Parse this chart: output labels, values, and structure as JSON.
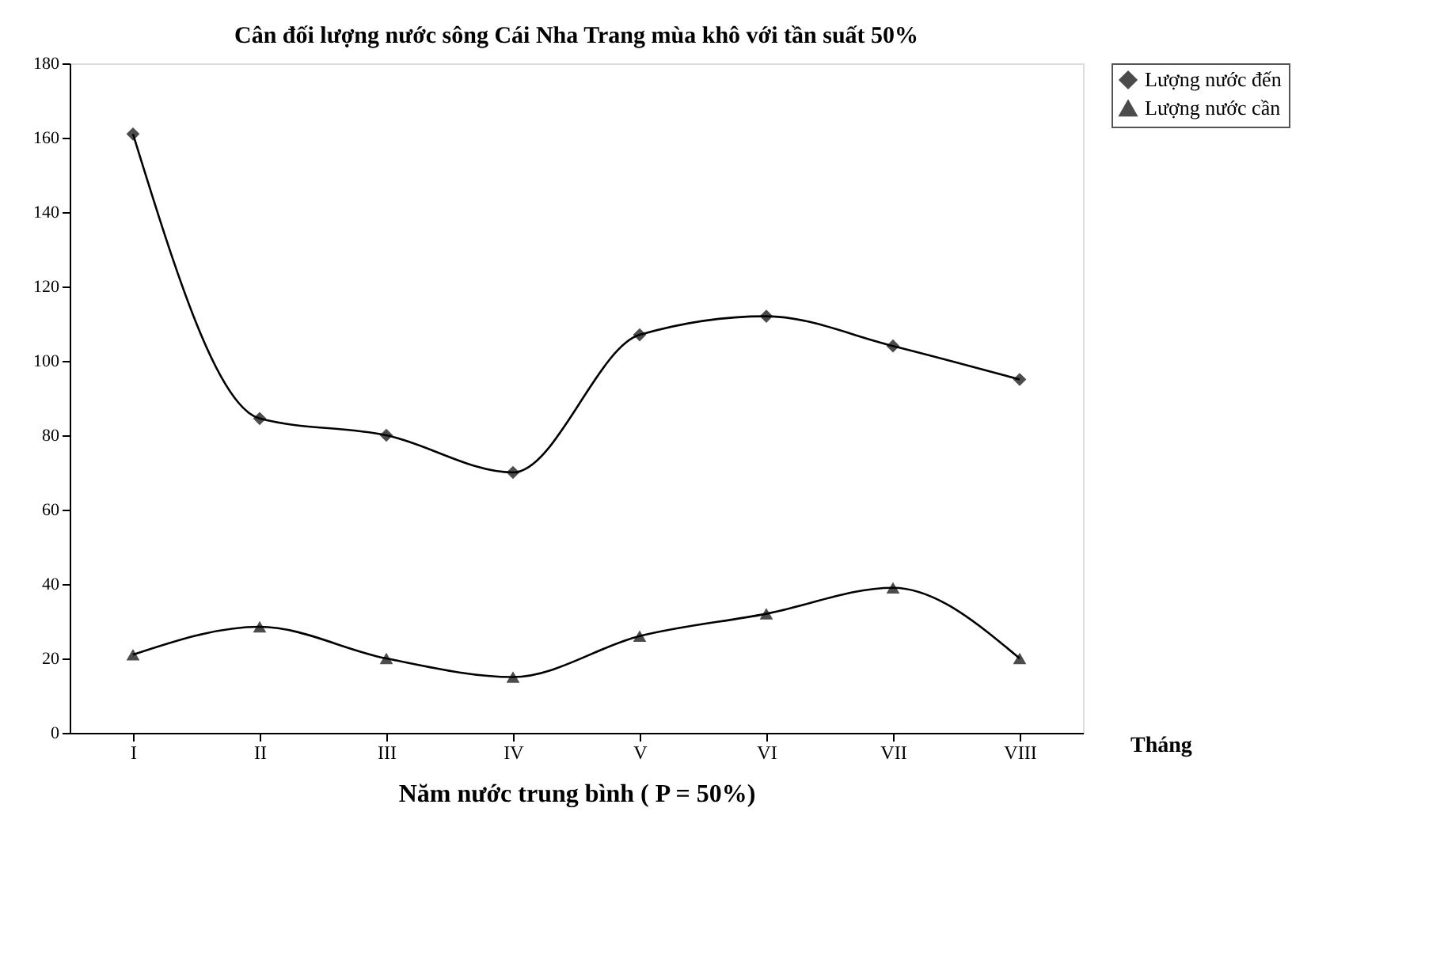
{
  "chart_data": {
    "type": "line",
    "title": "Cân đối lượng nước sông Cái Nha Trang mùa khô với tần suất 50%",
    "xlabel": "Năm nước trung bình  ( P = 50%)",
    "annotations": [
      "Tháng"
    ],
    "categories": [
      "I",
      "II",
      "III",
      "IV",
      "V",
      "VI",
      "VII",
      "VIII"
    ],
    "series": [
      {
        "name": "Lượng nước đến",
        "color": "#000000",
        "marker": "diamond",
        "values": [
          161,
          84.5,
          80,
          70,
          107,
          112,
          104,
          95
        ]
      },
      {
        "name": "Lượng nước cần",
        "color": "#000000",
        "marker": "triangle",
        "values": [
          21,
          28.5,
          20,
          15,
          26,
          32,
          39,
          20
        ]
      }
    ],
    "ylim": [
      0,
      180
    ],
    "yticks": [
      0,
      20,
      40,
      60,
      80,
      100,
      120,
      140,
      160,
      180
    ],
    "grid": false,
    "legend": "right",
    "line_style": "solid"
  }
}
